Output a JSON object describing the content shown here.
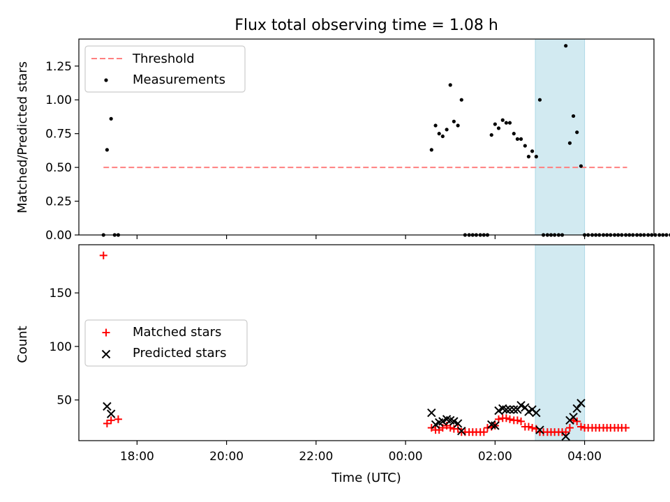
{
  "title": "Flux total observing time = 1.08 h",
  "xlabel": "Time (UTC)",
  "x_tick_labels": [
    "18:00",
    "20:00",
    "22:00",
    "00:00",
    "02:00",
    "04:00"
  ],
  "colors": {
    "threshold": "#ff7f7f",
    "measurements": "#000000",
    "matched": "#ff0000",
    "predicted": "#000000",
    "highlight": "#add8e6"
  },
  "chart_data": [
    {
      "type": "scatter",
      "panel": "top",
      "ylabel": "Matched/Predicted stars",
      "ylim": [
        0,
        1.45
      ],
      "xlim": [
        16.7,
        29.55
      ],
      "grid": false,
      "legend_position": "upper-left",
      "y_tick_labels": [
        "0.00",
        "0.25",
        "0.50",
        "0.75",
        "1.00",
        "1.25"
      ],
      "highlight_span": [
        26.9,
        28.0
      ],
      "threshold": {
        "name": "Threshold",
        "y": 0.5,
        "x_range": [
          17.25,
          28.95
        ]
      },
      "series": [
        {
          "name": "Measurements",
          "x": [
            17.25,
            17.33,
            17.42,
            17.5,
            17.58,
            24.58,
            24.67,
            24.75,
            24.83,
            24.92,
            25.0,
            25.08,
            25.17,
            25.25,
            25.33,
            25.42,
            25.5,
            25.58,
            25.67,
            25.75,
            25.83,
            25.92,
            26.0,
            26.08,
            26.17,
            26.25,
            26.33,
            26.42,
            26.5,
            26.58,
            26.67,
            26.75,
            26.83,
            26.92,
            27.0,
            27.08,
            27.17,
            27.25,
            27.33,
            27.42,
            27.5,
            27.58,
            27.67,
            27.75,
            27.83,
            27.92,
            28.0,
            28.08,
            28.17,
            28.25,
            28.33,
            28.42,
            28.5,
            28.58,
            28.67,
            28.75,
            28.83,
            28.92,
            29.0,
            29.08,
            29.17,
            29.25,
            29.33,
            29.42,
            29.5,
            29.58,
            29.67,
            29.75,
            29.83,
            29.92
          ],
          "y": [
            0.0,
            0.63,
            0.86,
            0.0,
            0.0,
            0.63,
            0.81,
            0.75,
            0.73,
            0.78,
            1.11,
            0.84,
            0.81,
            1.0,
            0.0,
            0.0,
            0.0,
            0.0,
            0.0,
            0.0,
            0.0,
            0.74,
            0.82,
            0.79,
            0.85,
            0.83,
            0.83,
            0.75,
            0.71,
            0.71,
            0.66,
            0.58,
            0.62,
            0.58,
            1.0,
            0.0,
            0.0,
            0.0,
            0.0,
            0.0,
            0.0,
            1.4,
            0.68,
            0.88,
            0.76,
            0.51,
            0.0,
            0.0,
            0.0,
            0.0,
            0.0,
            0.0,
            0.0,
            0.0,
            0.0,
            0.0,
            0.0,
            0.0,
            0.0,
            0.0,
            0.0,
            0.0,
            0.0,
            0.0,
            0.0,
            0.0,
            0.0,
            0.0,
            0.0,
            0.0
          ]
        }
      ]
    },
    {
      "type": "scatter",
      "panel": "bottom",
      "ylabel": "Count",
      "ylim": [
        12,
        195
      ],
      "xlim": [
        16.7,
        29.55
      ],
      "grid": false,
      "legend_position": "center-left",
      "y_tick_labels": [
        "50",
        "100",
        "150"
      ],
      "highlight_span": [
        26.9,
        28.0
      ],
      "series": [
        {
          "name": "Matched stars",
          "marker": "plus",
          "x": [
            17.25,
            17.33,
            17.42,
            17.58,
            24.58,
            24.67,
            24.75,
            24.83,
            24.92,
            25.0,
            25.08,
            25.17,
            25.25,
            25.33,
            25.42,
            25.5,
            25.58,
            25.67,
            25.75,
            25.83,
            25.92,
            26.0,
            26.08,
            26.17,
            26.25,
            26.33,
            26.42,
            26.5,
            26.58,
            26.67,
            26.75,
            26.83,
            26.92,
            27.0,
            27.08,
            27.17,
            27.25,
            27.33,
            27.42,
            27.5,
            27.58,
            27.67,
            27.75,
            27.83,
            27.92,
            28.0,
            28.08,
            28.17,
            28.25,
            28.33,
            28.42,
            28.5,
            28.58,
            28.67,
            28.75,
            28.83,
            28.92
          ],
          "y": [
            185,
            28,
            31,
            32,
            24,
            22,
            22,
            24,
            26,
            24,
            23,
            23,
            20,
            20,
            20,
            20,
            20,
            20,
            20,
            24,
            25,
            26,
            32,
            33,
            33,
            32,
            31,
            31,
            30,
            25,
            25,
            24,
            23,
            20,
            20,
            20,
            20,
            20,
            20,
            20,
            20,
            24,
            31,
            30,
            25,
            24,
            24,
            24,
            24,
            24,
            24,
            24,
            24,
            24,
            24,
            24,
            24
          ]
        },
        {
          "name": "Predicted stars",
          "marker": "x",
          "x": [
            17.33,
            17.42,
            24.58,
            24.67,
            24.75,
            24.83,
            24.92,
            25.0,
            25.08,
            25.17,
            25.25,
            25.92,
            26.0,
            26.08,
            26.17,
            26.25,
            26.33,
            26.42,
            26.5,
            26.58,
            26.67,
            26.75,
            26.83,
            26.92,
            27.0,
            27.58,
            27.67,
            27.75,
            27.83,
            27.92
          ],
          "y": [
            44,
            37,
            38,
            27,
            29,
            30,
            32,
            31,
            30,
            28,
            21,
            27,
            26,
            40,
            42,
            41,
            41,
            41,
            41,
            45,
            43,
            39,
            41,
            38,
            22,
            16,
            31,
            34,
            42,
            47
          ]
        }
      ]
    }
  ]
}
